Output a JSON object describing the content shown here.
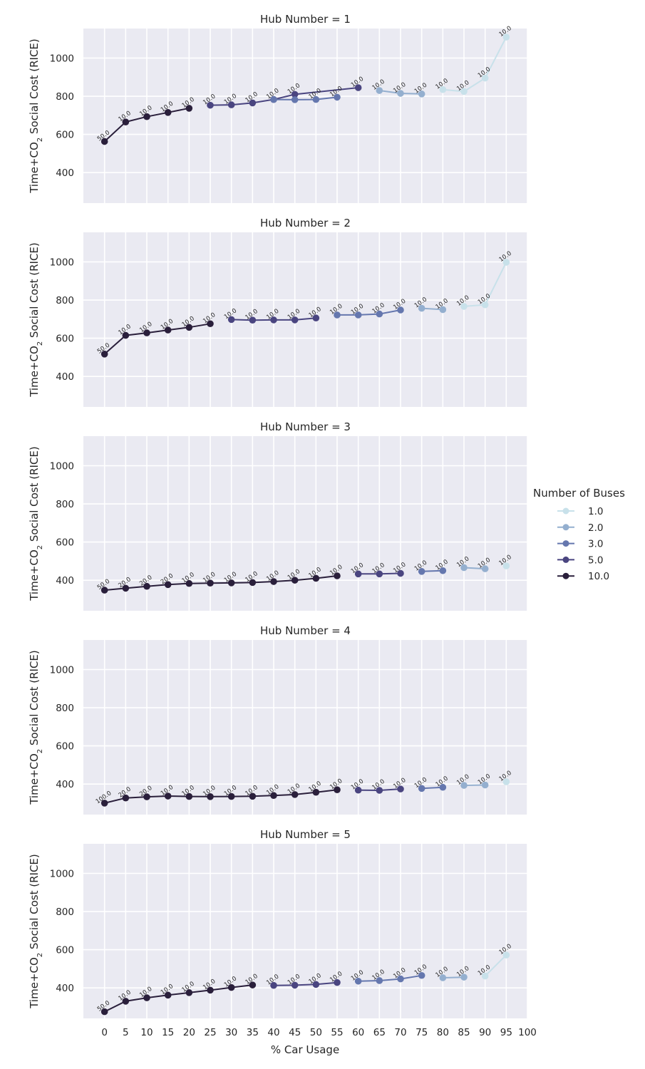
{
  "chart_data": {
    "type": "line",
    "facet_title_prefix": "Hub Number = ",
    "x_axis_label": "% Car Usage",
    "y_axis_label": "Time+CO",
    "y_axis_label_sub": "2",
    "y_axis_label_suffix": " Social Cost (RICE)",
    "x_ticks": [
      0,
      5,
      10,
      15,
      20,
      25,
      30,
      35,
      40,
      45,
      50,
      55,
      60,
      65,
      70,
      75,
      80,
      85,
      90,
      95,
      100
    ],
    "y_ticks": [
      400,
      600,
      800,
      1000
    ],
    "xlim": [
      -5,
      100
    ],
    "ylim": [
      240,
      1155
    ],
    "grid": true,
    "legend": {
      "title": "Number of Buses",
      "position": "right",
      "entries": [
        {
          "label": "1.0",
          "color": "#c8e1ea"
        },
        {
          "label": "2.0",
          "color": "#94afcf"
        },
        {
          "label": "3.0",
          "color": "#6577ae"
        },
        {
          "label": "5.0",
          "color": "#4a4580"
        },
        {
          "label": "10.0",
          "color": "#2a1f3b"
        }
      ]
    },
    "facets": [
      {
        "hub": "1",
        "series": [
          {
            "buses": "10.0",
            "x": [
              0,
              5,
              10,
              15,
              20
            ],
            "y": [
              563,
              665,
              693,
              715,
              737
            ],
            "labels": [
              "50.0",
              "10.0",
              "10.0",
              "10.0",
              "10.0"
            ]
          },
          {
            "buses": "5.0",
            "x": [
              25,
              30,
              35,
              40,
              45,
              60
            ],
            "y": [
              753,
              755,
              765,
              783,
              810,
              845
            ],
            "labels": [
              "10.0",
              "10.0",
              "10.0",
              "10.0",
              "10.0",
              "10.0"
            ]
          },
          {
            "buses": "3.0",
            "x": [
              40,
              45,
              50,
              55
            ],
            "y": [
              783,
              782,
              783,
              795
            ],
            "labels": [
              "",
              "",
              "10.0",
              "10.0"
            ]
          },
          {
            "buses": "2.0",
            "x": [
              65,
              70,
              75
            ],
            "y": [
              830,
              815,
              812
            ],
            "labels": [
              "10.0",
              "10.0",
              "10.0"
            ]
          },
          {
            "buses": "1.0",
            "x": [
              80,
              85,
              90,
              95
            ],
            "y": [
              835,
              825,
              895,
              1110
            ],
            "labels": [
              "10.0",
              "10.0",
              "10.0",
              "10.0"
            ]
          }
        ]
      },
      {
        "hub": "2",
        "series": [
          {
            "buses": "10.0",
            "x": [
              0,
              5,
              10,
              15,
              20,
              25
            ],
            "y": [
              517,
              615,
              628,
              643,
              657,
              676
            ],
            "labels": [
              "50.0",
              "10.0",
              "10.0",
              "10.0",
              "10.0",
              "10.0"
            ]
          },
          {
            "buses": "5.0",
            "x": [
              30,
              35,
              40,
              45,
              50
            ],
            "y": [
              698,
              695,
              696,
              696,
              706
            ],
            "labels": [
              "10.0",
              "10.0",
              "10.0",
              "10.0",
              "10.0"
            ]
          },
          {
            "buses": "3.0",
            "x": [
              55,
              60,
              65,
              70
            ],
            "y": [
              722,
              722,
              727,
              748
            ],
            "labels": [
              "10.0",
              "10.0",
              "10.0",
              "10.0"
            ]
          },
          {
            "buses": "2.0",
            "x": [
              75,
              80
            ],
            "y": [
              757,
              750
            ],
            "labels": [
              "10.0",
              "10.0"
            ]
          },
          {
            "buses": "1.0",
            "x": [
              85,
              90,
              95
            ],
            "y": [
              767,
              775,
              998
            ],
            "labels": [
              "10.0",
              "10.0",
              "10.0"
            ]
          }
        ]
      },
      {
        "hub": "3",
        "series": [
          {
            "buses": "10.0",
            "x": [
              0,
              5,
              10,
              15,
              20,
              25,
              30,
              35,
              40,
              45,
              50,
              55
            ],
            "y": [
              348,
              358,
              368,
              377,
              383,
              385,
              386,
              388,
              393,
              400,
              410,
              423
            ],
            "labels": [
              "50.0",
              "20.0",
              "20.0",
              "20.0",
              "10.0",
              "10.0",
              "10.0",
              "10.0",
              "10.0",
              "10.0",
              "10.0",
              "10.0"
            ]
          },
          {
            "buses": "5.0",
            "x": [
              60,
              65,
              70
            ],
            "y": [
              433,
              433,
              436
            ],
            "labels": [
              "10.0",
              "10.0",
              "10.0"
            ]
          },
          {
            "buses": "3.0",
            "x": [
              75,
              80
            ],
            "y": [
              446,
              450
            ],
            "labels": [
              "10.0",
              "10.0"
            ]
          },
          {
            "buses": "2.0",
            "x": [
              85,
              90
            ],
            "y": [
              466,
              460
            ],
            "labels": [
              "10.0",
              "10.0"
            ]
          },
          {
            "buses": "1.0",
            "x": [
              95
            ],
            "y": [
              475
            ],
            "labels": [
              "10.0"
            ]
          }
        ]
      },
      {
        "hub": "4",
        "series": [
          {
            "buses": "10.0",
            "x": [
              0,
              5,
              10,
              15,
              20,
              25,
              30,
              35,
              40,
              45,
              50,
              55
            ],
            "y": [
              300,
              327,
              333,
              337,
              335,
              334,
              335,
              336,
              340,
              345,
              357,
              370
            ],
            "labels": [
              "100.0",
              "20.0",
              "20.0",
              "10.0",
              "10.0",
              "10.0",
              "10.0",
              "10.0",
              "10.0",
              "10.0",
              "10.0",
              "10.0"
            ]
          },
          {
            "buses": "5.0",
            "x": [
              60,
              65,
              70
            ],
            "y": [
              368,
              367,
              374
            ],
            "labels": [
              "10.0",
              "10.0",
              "10.0"
            ]
          },
          {
            "buses": "3.0",
            "x": [
              75,
              80
            ],
            "y": [
              377,
              383
            ],
            "labels": [
              "10.0",
              "10.0"
            ]
          },
          {
            "buses": "2.0",
            "x": [
              85,
              90
            ],
            "y": [
              393,
              395
            ],
            "labels": [
              "10.0",
              "10.0"
            ]
          },
          {
            "buses": "1.0",
            "x": [
              95
            ],
            "y": [
              412
            ],
            "labels": [
              "10.0"
            ]
          }
        ]
      },
      {
        "hub": "5",
        "series": [
          {
            "buses": "10.0",
            "x": [
              0,
              5,
              10,
              15,
              20,
              25,
              30,
              35
            ],
            "y": [
              275,
              330,
              348,
              362,
              375,
              388,
              402,
              415
            ],
            "labels": [
              "50.0",
              "10.0",
              "10.0",
              "10.0",
              "10.0",
              "10.0",
              "10.0",
              "10.0"
            ]
          },
          {
            "buses": "5.0",
            "x": [
              40,
              45,
              50,
              55
            ],
            "y": [
              413,
              414,
              418,
              428
            ],
            "labels": [
              "10.0",
              "10.0",
              "10.0",
              "10.0"
            ]
          },
          {
            "buses": "3.0",
            "x": [
              60,
              65,
              70,
              75
            ],
            "y": [
              435,
              438,
              447,
              465
            ],
            "labels": [
              "10.0",
              "10.0",
              "10.0",
              "10.0"
            ]
          },
          {
            "buses": "2.0",
            "x": [
              80,
              85
            ],
            "y": [
              453,
              456
            ],
            "labels": [
              "10.0",
              "10.0"
            ]
          },
          {
            "buses": "1.0",
            "x": [
              90,
              95
            ],
            "y": [
              462,
              572
            ],
            "labels": [
              "10.0",
              "10.0"
            ]
          }
        ]
      }
    ]
  }
}
